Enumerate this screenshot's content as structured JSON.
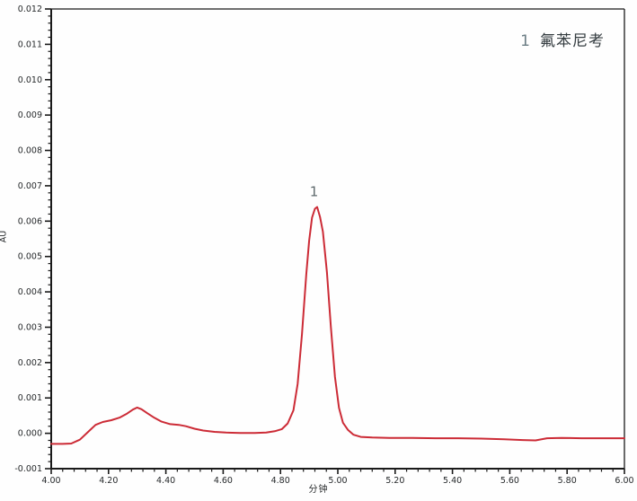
{
  "legend": {
    "number": "1",
    "name": "氟苯尼考"
  },
  "colors": {
    "trace": "#cc2b36",
    "axis": "#1a1a1a",
    "tick_label": "#26292b",
    "annotation": "#5f6a6d",
    "background": "#fefefe"
  },
  "chart_data": {
    "type": "line",
    "title": "",
    "xlabel": "分钟",
    "ylabel": "AU",
    "xlim": [
      4.0,
      6.0
    ],
    "ylim": [
      -0.001,
      0.012
    ],
    "grid": false,
    "legend_position": "top-right",
    "x_tick_values": [
      4.0,
      4.2,
      4.4,
      4.6,
      4.8,
      5.0,
      5.2,
      5.4,
      5.6,
      5.8,
      6.0
    ],
    "x_tick_labels": [
      "4.00",
      "4.20",
      "4.40",
      "4.60",
      "4.80",
      "5.00",
      "5.20",
      "5.40",
      "5.60",
      "5.80",
      "6.00"
    ],
    "x_minor_step": 0.04,
    "y_tick_values": [
      -0.001,
      0.0,
      0.001,
      0.002,
      0.003,
      0.004,
      0.005,
      0.006,
      0.007,
      0.008,
      0.009,
      0.01,
      0.011,
      0.012
    ],
    "y_tick_labels": [
      "-0.001",
      "0.000",
      "0.001",
      "0.002",
      "0.003",
      "0.004",
      "0.005",
      "0.006",
      "0.007",
      "0.008",
      "0.009",
      "0.010",
      "0.011",
      "0.012"
    ],
    "y_minor_step": 0.0002,
    "peak_annotations": [
      {
        "label": "1",
        "time": 4.917,
        "value": 0.0064
      }
    ],
    "series": [
      {
        "name": "氟苯尼考",
        "points": [
          [
            4.0,
            -0.0003
          ],
          [
            4.04,
            -0.0003
          ],
          [
            4.07,
            -0.00029
          ],
          [
            4.1,
            -0.00018
          ],
          [
            4.13,
            5e-05
          ],
          [
            4.155,
            0.00024
          ],
          [
            4.18,
            0.00032
          ],
          [
            4.21,
            0.00037
          ],
          [
            4.24,
            0.00045
          ],
          [
            4.265,
            0.00056
          ],
          [
            4.285,
            0.00067
          ],
          [
            4.3,
            0.00073
          ],
          [
            4.315,
            0.00068
          ],
          [
            4.335,
            0.00057
          ],
          [
            4.36,
            0.00044
          ],
          [
            4.385,
            0.00033
          ],
          [
            4.415,
            0.00026
          ],
          [
            4.445,
            0.00024
          ],
          [
            4.47,
            0.0002
          ],
          [
            4.5,
            0.00013
          ],
          [
            4.53,
            8e-05
          ],
          [
            4.57,
            4e-05
          ],
          [
            4.61,
            2e-05
          ],
          [
            4.66,
            1e-05
          ],
          [
            4.71,
            1e-05
          ],
          [
            4.75,
            2e-05
          ],
          [
            4.78,
            6e-05
          ],
          [
            4.805,
            0.00012
          ],
          [
            4.825,
            0.00028
          ],
          [
            4.845,
            0.00065
          ],
          [
            4.86,
            0.0014
          ],
          [
            4.875,
            0.0028
          ],
          [
            4.89,
            0.0045
          ],
          [
            4.9,
            0.00545
          ],
          [
            4.91,
            0.0061
          ],
          [
            4.92,
            0.00635
          ],
          [
            4.928,
            0.0064
          ],
          [
            4.938,
            0.00612
          ],
          [
            4.948,
            0.0057
          ],
          [
            4.962,
            0.00455
          ],
          [
            4.976,
            0.003
          ],
          [
            4.99,
            0.0016
          ],
          [
            5.004,
            0.00072
          ],
          [
            5.018,
            0.0003
          ],
          [
            5.035,
            0.0001
          ],
          [
            5.055,
            -4e-05
          ],
          [
            5.08,
            -0.0001
          ],
          [
            5.12,
            -0.00012
          ],
          [
            5.18,
            -0.00013
          ],
          [
            5.26,
            -0.00013
          ],
          [
            5.34,
            -0.00014
          ],
          [
            5.42,
            -0.00014
          ],
          [
            5.5,
            -0.00015
          ],
          [
            5.58,
            -0.00017
          ],
          [
            5.645,
            -0.00019
          ],
          [
            5.69,
            -0.0002
          ],
          [
            5.73,
            -0.00014
          ],
          [
            5.78,
            -0.00013
          ],
          [
            5.85,
            -0.00014
          ],
          [
            5.92,
            -0.00014
          ],
          [
            6.0,
            -0.00014
          ]
        ]
      }
    ]
  }
}
